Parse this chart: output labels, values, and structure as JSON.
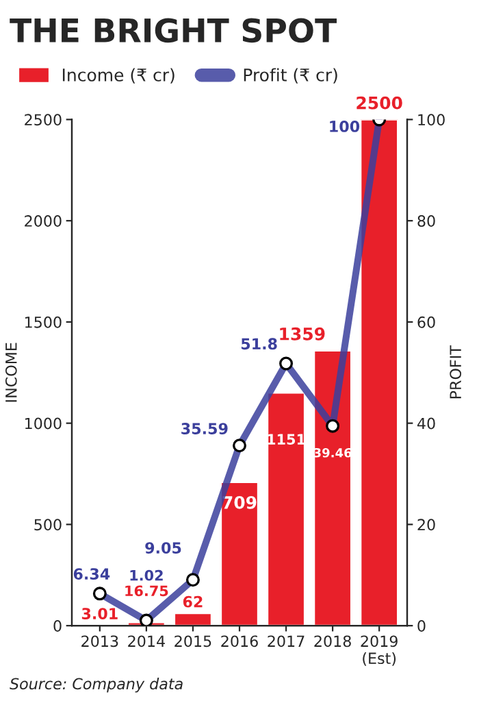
{
  "chart_data": {
    "type": "bar",
    "title": "THE BRIGHT SPOT",
    "categories": [
      "2013",
      "2014",
      "2015",
      "2016",
      "2017",
      "2018",
      "2019\n(Est)"
    ],
    "series": [
      {
        "name": "Income (₹ cr)",
        "color": "#e8202a",
        "values": [
          3.01,
          16.75,
          62,
          709,
          1151,
          1359,
          2500
        ]
      },
      {
        "name": "Profit (₹ cr)",
        "type": "line",
        "axis": "y2",
        "color": "#3b3f9c",
        "values": [
          6.34,
          1.02,
          9.05,
          35.59,
          51.8,
          39.46,
          100
        ]
      }
    ],
    "ylabel": "INCOME",
    "y2label": "PROFIT",
    "ylim": [
      0,
      2500
    ],
    "yticks": [
      0,
      500,
      1000,
      1500,
      2000,
      2500
    ],
    "y2lim": [
      0,
      100
    ],
    "y2ticks": [
      0,
      20,
      40,
      60,
      80,
      100
    ],
    "data_labels": true,
    "legend": "top",
    "grid": false,
    "marker": "circle",
    "line_style": "solid",
    "annotations": [
      "Source: Company data"
    ]
  }
}
